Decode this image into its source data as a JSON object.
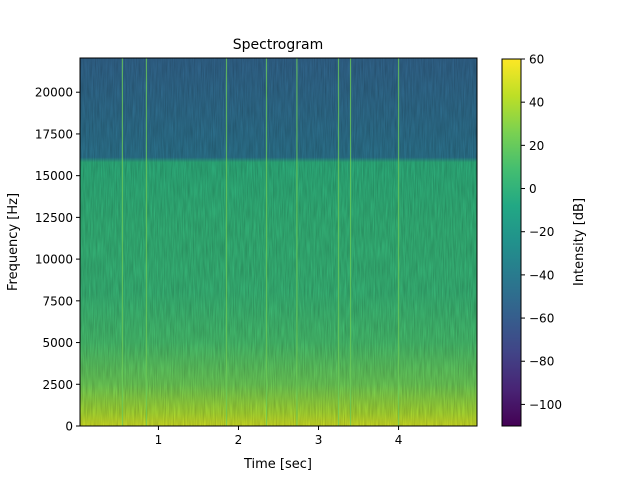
{
  "chart_data": {
    "type": "heatmap",
    "title": "Spectrogram",
    "xlabel": "Time [sec]",
    "ylabel": "Frequency [Hz]",
    "xlim": [
      0.02,
      4.98
    ],
    "ylim": [
      0,
      22050
    ],
    "x_ticks": [
      1,
      2,
      3,
      4
    ],
    "y_ticks": [
      0,
      2500,
      5000,
      7500,
      10000,
      12500,
      15000,
      17500,
      20000
    ],
    "colorbar": {
      "label": "Intensity [dB]",
      "range": [
        -110,
        60
      ],
      "ticks": [
        60,
        40,
        20,
        0,
        -20,
        -40,
        -60,
        -80,
        -100
      ],
      "colormap": "viridis"
    },
    "spectrum_profile_db": [
      {
        "freq": 0,
        "db": 48
      },
      {
        "freq": 800,
        "db": 38
      },
      {
        "freq": 2500,
        "db": 22
      },
      {
        "freq": 5000,
        "db": 10
      },
      {
        "freq": 8000,
        "db": 3
      },
      {
        "freq": 12000,
        "db": 1
      },
      {
        "freq": 15800,
        "db": -2
      },
      {
        "freq": 16100,
        "db": -45
      },
      {
        "freq": 22050,
        "db": -55
      }
    ],
    "transient_times_sec": [
      0.55,
      0.85,
      1.85,
      2.35,
      2.73,
      3.25,
      3.4,
      4.0
    ],
    "grid": false
  }
}
